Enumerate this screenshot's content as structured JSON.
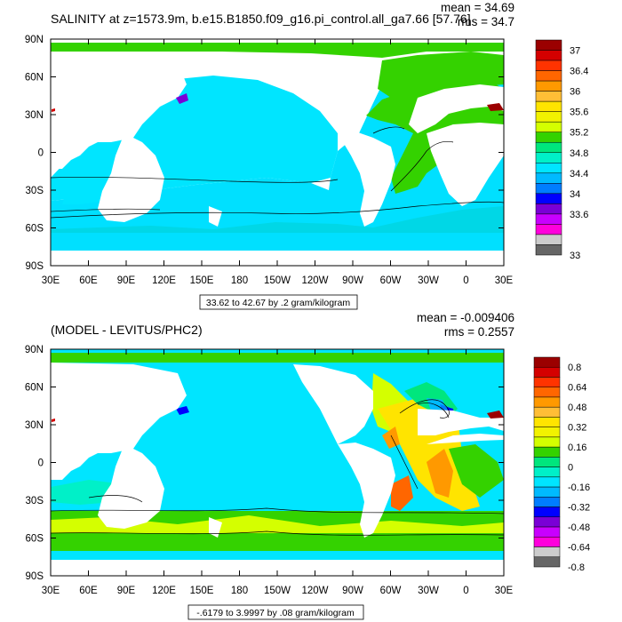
{
  "chart_data": [
    {
      "type": "heatmap",
      "title": "SALINITY at z=1573.9m, b.e15.B1850.f09_g16.pi_control.all_ga7.66 [57.76]",
      "stats": {
        "mean": "mean = 34.69",
        "rms": "rms = 34.7"
      },
      "x_ticks": [
        "30E",
        "60E",
        "90E",
        "120E",
        "150E",
        "180",
        "150W",
        "120W",
        "90W",
        "60W",
        "30W",
        "0",
        "30E"
      ],
      "y_ticks": [
        "90N",
        "60N",
        "30N",
        "0",
        "30S",
        "60S",
        "90S"
      ],
      "contour_info": "33.62 to 42.67 by .2 gram/kilogram",
      "colorbar": {
        "labels": [
          "37",
          "36.4",
          "36",
          "35.6",
          "35.2",
          "34.8",
          "34.4",
          "34",
          "33.6",
          "33"
        ],
        "colors": [
          "#9b0000",
          "#d40000",
          "#ff3300",
          "#ff6600",
          "#ff9900",
          "#ffbe36",
          "#ffe400",
          "#f2f200",
          "#d4ff00",
          "#34d200",
          "#00e67d",
          "#00f0c8",
          "#00e5ff",
          "#00baff",
          "#007dff",
          "#0000ff",
          "#7a00d6",
          "#c800ff",
          "#ff00dc",
          "#cccccc",
          "#666666"
        ]
      },
      "ylim": [
        -90,
        90
      ],
      "xlim": [
        30,
        390
      ]
    },
    {
      "type": "heatmap",
      "title": "(MODEL - LEVITUS/PHC2)",
      "stats": {
        "mean": "mean = -0.009406",
        "rms": "rms = 0.2557"
      },
      "x_ticks": [
        "30E",
        "60E",
        "90E",
        "120E",
        "150E",
        "180",
        "150W",
        "120W",
        "90W",
        "60W",
        "30W",
        "0",
        "30E"
      ],
      "y_ticks": [
        "90N",
        "60N",
        "30N",
        "0",
        "30S",
        "60S",
        "90S"
      ],
      "contour_info": "-.6179 to 3.9997 by .08 gram/kilogram",
      "colorbar": {
        "labels": [
          "0.8",
          "0.64",
          "0.48",
          "0.32",
          "0.16",
          "0",
          "-0.16",
          "-0.32",
          "-0.48",
          "-0.64",
          "-0.8"
        ],
        "colors": [
          "#9b0000",
          "#d40000",
          "#ff3300",
          "#ff6600",
          "#ff9900",
          "#ffbe36",
          "#ffe400",
          "#f2f200",
          "#d4ff00",
          "#34d200",
          "#00e67d",
          "#00f0c8",
          "#00e5ff",
          "#00baff",
          "#007dff",
          "#0000ff",
          "#7a00d6",
          "#c800ff",
          "#ff00dc",
          "#cccccc",
          "#666666"
        ]
      },
      "ylim": [
        -90,
        90
      ],
      "xlim": [
        30,
        390
      ]
    }
  ]
}
